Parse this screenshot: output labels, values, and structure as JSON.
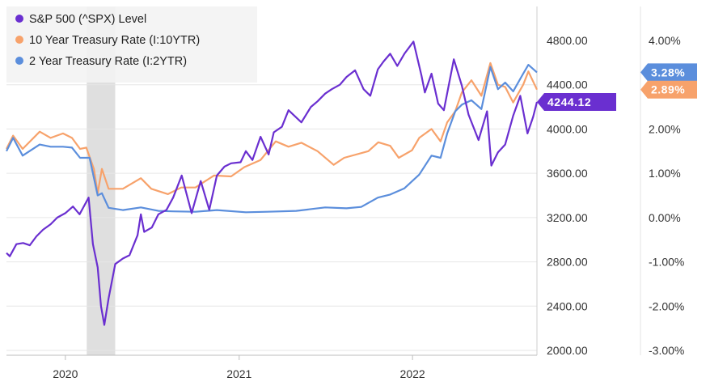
{
  "chart_data": {
    "type": "line",
    "title": "",
    "xlabel": "",
    "ylabel": "",
    "x_ticks": [
      "2020",
      "2021",
      "2022"
    ],
    "x_range": [
      "2019-08-30",
      "2022-09-20"
    ],
    "y_left": {
      "ticks": [
        "4800.00",
        "4400.00",
        "4000.00",
        "3600.00",
        "3200.00",
        "2800.00",
        "2400.00",
        "2000.00"
      ],
      "ylim": [
        2000,
        4800
      ]
    },
    "y_right": {
      "ticks": [
        "4.00%",
        "3.00%",
        "2.00%",
        "1.00%",
        "0.00%",
        "-1.00%",
        "-2.00%",
        "-3.00%"
      ],
      "ylim": [
        -3,
        4
      ]
    },
    "grid": "horizontal",
    "legend_position": "top-left",
    "recession_band": {
      "start": "2020-02-15",
      "end": "2020-04-15"
    },
    "series": [
      {
        "name": "S&P 500 (^SPX) Level",
        "axis": "left",
        "color": "#6a2fd0",
        "last_value_label": "4244.12",
        "points": [
          [
            "2019-08-30",
            2880
          ],
          [
            "2019-09-06",
            2850
          ],
          [
            "2019-09-20",
            2960
          ],
          [
            "2019-10-04",
            2970
          ],
          [
            "2019-10-18",
            2950
          ],
          [
            "2019-11-01",
            3030
          ],
          [
            "2019-11-15",
            3090
          ],
          [
            "2019-12-01",
            3140
          ],
          [
            "2019-12-15",
            3200
          ],
          [
            "2020-01-01",
            3240
          ],
          [
            "2020-01-17",
            3300
          ],
          [
            "2020-01-31",
            3230
          ],
          [
            "2020-02-19",
            3380
          ],
          [
            "2020-02-28",
            2960
          ],
          [
            "2020-03-09",
            2750
          ],
          [
            "2020-03-16",
            2400
          ],
          [
            "2020-03-23",
            2230
          ],
          [
            "2020-04-01",
            2470
          ],
          [
            "2020-04-15",
            2780
          ],
          [
            "2020-05-01",
            2830
          ],
          [
            "2020-05-15",
            2860
          ],
          [
            "2020-06-01",
            3040
          ],
          [
            "2020-06-08",
            3230
          ],
          [
            "2020-06-15",
            3070
          ],
          [
            "2020-07-01",
            3110
          ],
          [
            "2020-07-15",
            3230
          ],
          [
            "2020-08-01",
            3270
          ],
          [
            "2020-08-15",
            3380
          ],
          [
            "2020-09-02",
            3580
          ],
          [
            "2020-09-23",
            3240
          ],
          [
            "2020-10-12",
            3530
          ],
          [
            "2020-10-30",
            3270
          ],
          [
            "2020-11-15",
            3580
          ],
          [
            "2020-12-01",
            3660
          ],
          [
            "2020-12-15",
            3690
          ],
          [
            "2021-01-04",
            3700
          ],
          [
            "2021-01-15",
            3800
          ],
          [
            "2021-01-29",
            3720
          ],
          [
            "2021-02-15",
            3930
          ],
          [
            "2021-03-04",
            3770
          ],
          [
            "2021-03-15",
            3970
          ],
          [
            "2021-04-01",
            4020
          ],
          [
            "2021-04-15",
            4170
          ],
          [
            "2021-05-12",
            4060
          ],
          [
            "2021-06-01",
            4200
          ],
          [
            "2021-06-15",
            4250
          ],
          [
            "2021-07-01",
            4320
          ],
          [
            "2021-07-15",
            4360
          ],
          [
            "2021-08-01",
            4400
          ],
          [
            "2021-08-15",
            4470
          ],
          [
            "2021-09-02",
            4530
          ],
          [
            "2021-09-20",
            4360
          ],
          [
            "2021-10-04",
            4300
          ],
          [
            "2021-10-20",
            4540
          ],
          [
            "2021-11-01",
            4610
          ],
          [
            "2021-11-15",
            4680
          ],
          [
            "2021-11-30",
            4570
          ],
          [
            "2021-12-15",
            4680
          ],
          [
            "2022-01-03",
            4790
          ],
          [
            "2022-01-20",
            4480
          ],
          [
            "2022-01-27",
            4330
          ],
          [
            "2022-02-10",
            4500
          ],
          [
            "2022-02-24",
            4230
          ],
          [
            "2022-03-08",
            4170
          ],
          [
            "2022-03-29",
            4630
          ],
          [
            "2022-04-15",
            4390
          ],
          [
            "2022-04-29",
            4130
          ],
          [
            "2022-05-20",
            3900
          ],
          [
            "2022-06-07",
            4160
          ],
          [
            "2022-06-16",
            3670
          ],
          [
            "2022-06-30",
            3790
          ],
          [
            "2022-07-15",
            3860
          ],
          [
            "2022-08-01",
            4120
          ],
          [
            "2022-08-16",
            4300
          ],
          [
            "2022-08-31",
            3960
          ],
          [
            "2022-09-12",
            4110
          ],
          [
            "2022-09-20",
            4244.12
          ]
        ]
      },
      {
        "name": "10 Year Treasury Rate (I:10YTR)",
        "axis": "right",
        "color": "#f7a26b",
        "last_value_label": "2.89%",
        "points": [
          [
            "2019-08-30",
            1.55
          ],
          [
            "2019-09-13",
            1.85
          ],
          [
            "2019-10-03",
            1.55
          ],
          [
            "2019-11-08",
            1.94
          ],
          [
            "2019-12-01",
            1.8
          ],
          [
            "2019-12-27",
            1.9
          ],
          [
            "2020-01-15",
            1.8
          ],
          [
            "2020-02-01",
            1.55
          ],
          [
            "2020-02-14",
            1.58
          ],
          [
            "2020-03-01",
            1.1
          ],
          [
            "2020-03-09",
            0.55
          ],
          [
            "2020-03-18",
            1.1
          ],
          [
            "2020-04-01",
            0.65
          ],
          [
            "2020-05-01",
            0.65
          ],
          [
            "2020-06-08",
            0.89
          ],
          [
            "2020-06-30",
            0.65
          ],
          [
            "2020-08-04",
            0.53
          ],
          [
            "2020-09-01",
            0.68
          ],
          [
            "2020-10-01",
            0.68
          ],
          [
            "2020-11-09",
            0.95
          ],
          [
            "2020-12-15",
            0.93
          ],
          [
            "2021-01-12",
            1.14
          ],
          [
            "2021-02-15",
            1.3
          ],
          [
            "2021-03-19",
            1.72
          ],
          [
            "2021-04-15",
            1.6
          ],
          [
            "2021-05-12",
            1.69
          ],
          [
            "2021-06-15",
            1.5
          ],
          [
            "2021-07-19",
            1.19
          ],
          [
            "2021-08-10",
            1.35
          ],
          [
            "2021-09-30",
            1.5
          ],
          [
            "2021-10-21",
            1.7
          ],
          [
            "2021-11-15",
            1.62
          ],
          [
            "2021-12-03",
            1.35
          ],
          [
            "2021-12-31",
            1.52
          ],
          [
            "2022-01-15",
            1.8
          ],
          [
            "2022-02-10",
            2.0
          ],
          [
            "2022-03-01",
            1.72
          ],
          [
            "2022-03-15",
            2.15
          ],
          [
            "2022-04-01",
            2.4
          ],
          [
            "2022-04-15",
            2.83
          ],
          [
            "2022-05-05",
            3.1
          ],
          [
            "2022-05-26",
            2.75
          ],
          [
            "2022-06-14",
            3.49
          ],
          [
            "2022-06-30",
            3.0
          ],
          [
            "2022-07-15",
            2.95
          ],
          [
            "2022-08-01",
            2.6
          ],
          [
            "2022-08-22",
            3.0
          ],
          [
            "2022-09-02",
            3.3
          ],
          [
            "2022-09-20",
            2.89
          ]
        ]
      },
      {
        "name": "2 Year Treasury Rate (I:2YTR)",
        "axis": "right",
        "color": "#5b8edc",
        "last_value_label": "3.28%",
        "points": [
          [
            "2019-08-30",
            1.5
          ],
          [
            "2019-09-13",
            1.8
          ],
          [
            "2019-10-03",
            1.4
          ],
          [
            "2019-11-08",
            1.65
          ],
          [
            "2019-12-01",
            1.6
          ],
          [
            "2019-12-27",
            1.6
          ],
          [
            "2020-01-15",
            1.58
          ],
          [
            "2020-02-01",
            1.35
          ],
          [
            "2020-02-21",
            1.35
          ],
          [
            "2020-03-09",
            0.5
          ],
          [
            "2020-03-18",
            0.55
          ],
          [
            "2020-04-01",
            0.22
          ],
          [
            "2020-05-01",
            0.17
          ],
          [
            "2020-06-08",
            0.23
          ],
          [
            "2020-07-15",
            0.15
          ],
          [
            "2020-08-15",
            0.14
          ],
          [
            "2020-10-01",
            0.13
          ],
          [
            "2020-11-15",
            0.17
          ],
          [
            "2021-01-15",
            0.12
          ],
          [
            "2021-03-01",
            0.13
          ],
          [
            "2021-05-01",
            0.15
          ],
          [
            "2021-07-01",
            0.23
          ],
          [
            "2021-08-15",
            0.21
          ],
          [
            "2021-09-15",
            0.24
          ],
          [
            "2021-10-20",
            0.45
          ],
          [
            "2021-11-15",
            0.52
          ],
          [
            "2021-12-15",
            0.66
          ],
          [
            "2022-01-15",
            0.97
          ],
          [
            "2022-02-10",
            1.4
          ],
          [
            "2022-03-01",
            1.35
          ],
          [
            "2022-03-15",
            1.9
          ],
          [
            "2022-04-01",
            2.4
          ],
          [
            "2022-04-15",
            2.55
          ],
          [
            "2022-05-05",
            2.65
          ],
          [
            "2022-05-26",
            2.45
          ],
          [
            "2022-06-14",
            3.4
          ],
          [
            "2022-06-30",
            2.9
          ],
          [
            "2022-07-15",
            3.05
          ],
          [
            "2022-08-01",
            2.85
          ],
          [
            "2022-08-22",
            3.25
          ],
          [
            "2022-09-02",
            3.45
          ],
          [
            "2022-09-20",
            3.28
          ]
        ]
      }
    ]
  }
}
